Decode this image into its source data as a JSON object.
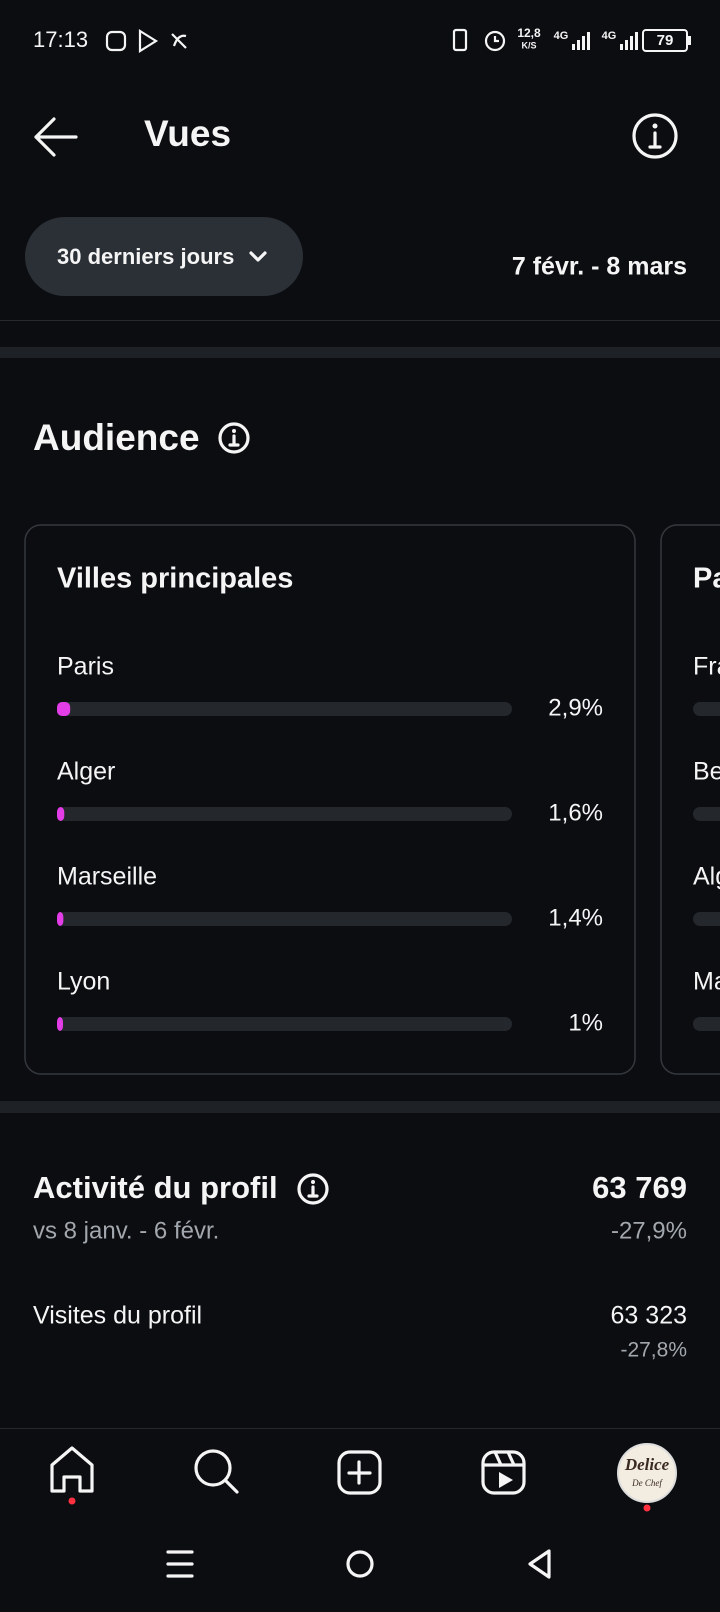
{
  "status_bar": {
    "time": "17:13",
    "speed": "12,8",
    "speed_unit": "K/S",
    "network_1": "4G",
    "network_2": "4G",
    "battery": "79"
  },
  "header": {
    "title": "Vues"
  },
  "filter": {
    "period": "30 derniers jours",
    "date_range": "7 févr. - 8 mars"
  },
  "audience": {
    "title": "Audience",
    "top_cities": {
      "title": "Villes principales",
      "categories": [
        "Paris",
        "Alger",
        "Marseille",
        "Lyon"
      ],
      "values": [
        2.9,
        1.6,
        1.4,
        1
      ],
      "value_labels": [
        "2,9%",
        "1,6%",
        "1,4%",
        "1%"
      ],
      "color": "#e23de6"
    },
    "next_card": {
      "title": "Pa",
      "items": [
        "Fra",
        "Be",
        "Alg",
        "Ma"
      ]
    }
  },
  "profile_activity": {
    "title": "Activité du profil",
    "value": "63 769",
    "comparison": "vs 8 janv. - 6 févr.",
    "change": "-27,9%",
    "rows": [
      {
        "label": "Visites du profil",
        "value": "63 323",
        "change": "-27,8%"
      }
    ]
  },
  "avatar": {
    "line_1": "Delice",
    "line_2": "De Chef"
  }
}
